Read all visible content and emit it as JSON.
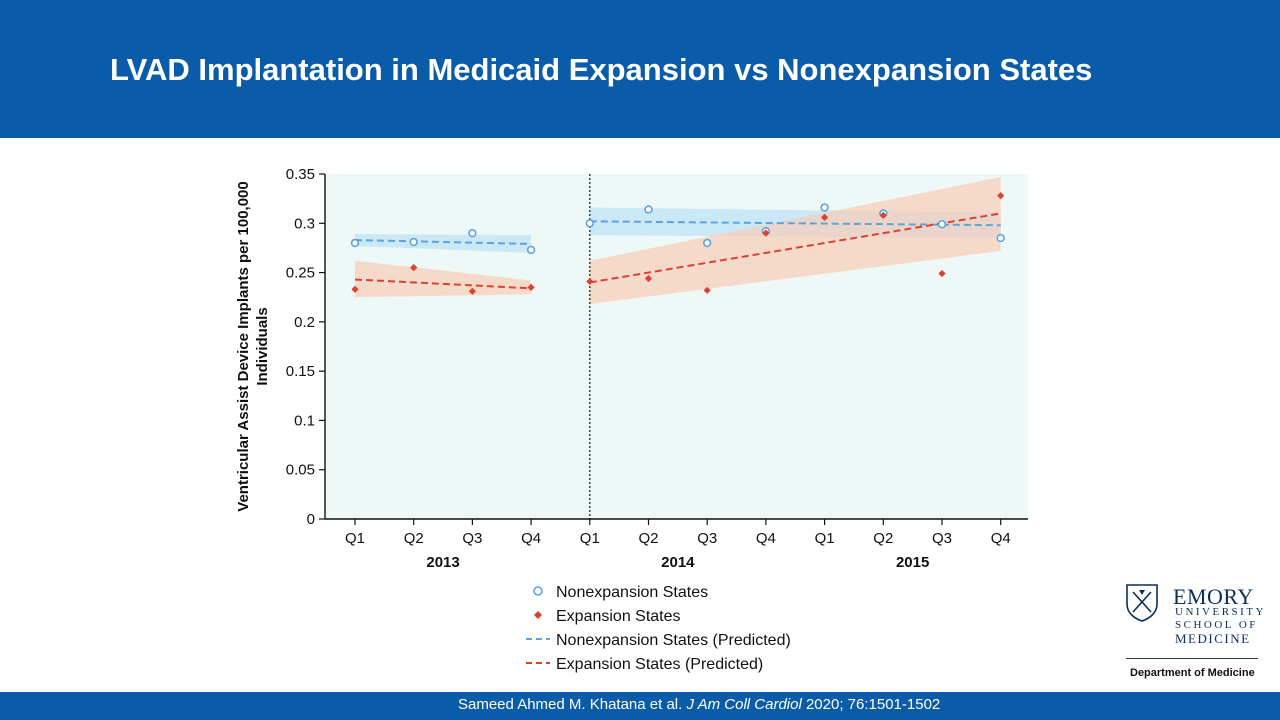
{
  "slide": {
    "title": "LVAD Implantation in Medicaid Expansion vs Nonexpansion States",
    "citation": {
      "authors": "Sameed Ahmed M. Khatana et al.",
      "journal": "J Am Coll Cardiol",
      "details": "2020; 76:1501-1502"
    }
  },
  "logo": {
    "name": "EMORY",
    "line1": "UNIVERSITY",
    "line2": "SCHOOL OF",
    "line3": "MEDICINE",
    "department": "Department of Medicine"
  },
  "chart_data": {
    "type": "scatter",
    "title": "",
    "xlabel": "",
    "ylabel": "Ventricular Assist Device Implants per 100,000 Individuals",
    "ylim": [
      0,
      0.35
    ],
    "yticks": [
      "0",
      "0.05",
      "0.1",
      "0.15",
      "0.2",
      "0.25",
      "0.3",
      "0.35"
    ],
    "categories": [
      "Q1",
      "Q2",
      "Q3",
      "Q4",
      "Q1",
      "Q2",
      "Q3",
      "Q4",
      "Q1",
      "Q2",
      "Q3",
      "Q4"
    ],
    "years": [
      {
        "label": "2013",
        "start": 0,
        "end": 3
      },
      {
        "label": "2014",
        "start": 4,
        "end": 7
      },
      {
        "label": "2015",
        "start": 8,
        "end": 11
      }
    ],
    "policy_break_index": 4,
    "grid": false,
    "legend_position": "bottom",
    "series": [
      {
        "name": "Nonexpansion States",
        "marker": "circle",
        "color": "#5aa5dc",
        "values": [
          0.28,
          0.281,
          0.29,
          0.273,
          0.3,
          0.314,
          0.28,
          0.292,
          0.316,
          0.31,
          0.299,
          0.285
        ]
      },
      {
        "name": "Expansion States",
        "marker": "diamond",
        "color": "#d9432f",
        "values": [
          0.233,
          0.255,
          0.231,
          0.235,
          0.241,
          0.244,
          0.232,
          0.29,
          0.306,
          0.308,
          0.249,
          0.328
        ]
      }
    ],
    "trend_lines": [
      {
        "name": "Nonexpansion States (Predicted)",
        "color": "#5aa5dc",
        "segments": [
          {
            "from": 0,
            "to": 3,
            "start": 0.283,
            "end": 0.279,
            "band_start": [
              0.277,
              0.289
            ],
            "band_end": [
              0.27,
              0.288
            ]
          },
          {
            "from": 4,
            "to": 11,
            "start": 0.302,
            "end": 0.298,
            "band_start": [
              0.288,
              0.316
            ],
            "band_end": [
              0.285,
              0.311
            ]
          }
        ]
      },
      {
        "name": "Expansion States (Predicted)",
        "color": "#d9432f",
        "segments": [
          {
            "from": 0,
            "to": 3,
            "start": 0.243,
            "end": 0.234,
            "band_start": [
              0.225,
              0.262
            ],
            "band_end": [
              0.228,
              0.242
            ]
          },
          {
            "from": 4,
            "to": 11,
            "start": 0.24,
            "end": 0.31,
            "band_start": [
              0.218,
              0.262
            ],
            "band_end": [
              0.272,
              0.347
            ]
          }
        ]
      }
    ]
  }
}
